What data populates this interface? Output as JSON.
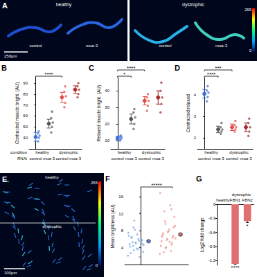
{
  "images": [
    {
      "title": "A",
      "panels": [
        {
          "label": "healthy",
          "sublabels": [
            "control",
            "mua-3"
          ]
        },
        {
          "label": "dystrophic",
          "sublabels": [
            "control",
            "mua-3"
          ]
        }
      ],
      "scale_bar": "250µm",
      "colorbar": {
        "min": 0,
        "max": 255
      }
    },
    {
      "title": "E",
      "labels": [
        "healthy",
        "dystrophic"
      ],
      "scale_bar": "100µm",
      "colorbar": {
        "min": 0,
        "max": 255
      }
    }
  ],
  "chart_data": [
    {
      "type": "dot_mean",
      "title": "B",
      "ylabel": "Contracted muscle bright. (AU)",
      "categories": [
        "control",
        "mua-3",
        "control",
        "mua-3"
      ],
      "groups": [
        {
          "label": "healthy",
          "from": 0,
          "to": 1
        },
        {
          "label": "dystrophic",
          "from": 2,
          "to": 3
        }
      ],
      "row_labels": [
        "condition",
        "RNAi"
      ],
      "colors": [
        "#3f6fd8",
        "#555555",
        "#e34a44",
        "#a52a2a"
      ],
      "means": [
        41,
        53,
        77,
        84
      ],
      "errors": [
        4,
        4,
        4.5,
        3.5
      ],
      "points": [
        [
          37,
          40,
          42,
          44,
          46
        ],
        [
          45,
          50,
          54,
          58,
          64
        ],
        [
          68,
          72,
          78,
          82,
          87
        ],
        [
          77,
          80,
          84,
          87,
          90
        ]
      ],
      "ylim": [
        30,
        95
      ],
      "yticks": [
        40,
        50,
        60,
        70,
        80,
        90
      ],
      "significance": [
        {
          "from": 0,
          "to": 2,
          "label": "****"
        }
      ]
    },
    {
      "type": "dot_mean",
      "title": "C",
      "ylabel": "Relaxed muscle bright. (AU)",
      "categories": [
        "control",
        "mua-3",
        "control",
        "mua-3"
      ],
      "groups": [
        {
          "label": "healthy",
          "from": 0,
          "to": 1
        },
        {
          "label": "dystrophic",
          "from": 2,
          "to": 3
        }
      ],
      "colors": [
        "#3f6fd8",
        "#555555",
        "#e34a44",
        "#a52a2a"
      ],
      "means": [
        11.5,
        23,
        34,
        36
      ],
      "errors": [
        1,
        3,
        2.5,
        4
      ],
      "points": [
        [
          10,
          11,
          12,
          12.5,
          13
        ],
        [
          17,
          20,
          24,
          27,
          29
        ],
        [
          28,
          31,
          34,
          36,
          38
        ],
        [
          27,
          32,
          36,
          40,
          45
        ]
      ],
      "ylim": [
        5,
        48
      ],
      "yticks": [
        10,
        20,
        30,
        40
      ],
      "significance": [
        {
          "from": 0,
          "to": 1,
          "label": "*"
        },
        {
          "from": 0,
          "to": 2,
          "label": "****"
        }
      ]
    },
    {
      "type": "dot_mean",
      "title": "D",
      "ylabel": "Contracted:relaxed",
      "categories": [
        "control",
        "mua-3",
        "control",
        "mua-3"
      ],
      "groups": [
        {
          "label": "healthy",
          "from": 0,
          "to": 1
        },
        {
          "label": "dystrophic",
          "from": 2,
          "to": 3
        }
      ],
      "colors": [
        "#3f6fd8",
        "#555555",
        "#e34a44",
        "#a52a2a"
      ],
      "means": [
        4.05,
        2.4,
        2.5,
        2.5
      ],
      "errors": [
        0.2,
        0.15,
        0.15,
        0.2
      ],
      "points": [
        [
          3.7,
          3.9,
          4.1,
          4.2,
          4.4
        ],
        [
          2.2,
          2.3,
          2.4,
          2.5,
          2.7
        ],
        [
          2.3,
          2.4,
          2.5,
          2.6,
          2.8
        ],
        [
          2.1,
          2.3,
          2.5,
          2.7,
          2.9
        ]
      ],
      "ylim": [
        1.5,
        4.8
      ],
      "yticks": [
        2,
        3,
        4
      ],
      "significance": [
        {
          "from": 0,
          "to": 1,
          "label": "****"
        },
        {
          "from": 0,
          "to": 2,
          "label": "***"
        }
      ]
    },
    {
      "type": "scatter",
      "title": "F",
      "ylabel": "Mean brightness (AU)",
      "tick_labels": "y",
      "series": [
        {
          "color": "#5b8fe0",
          "mean": 5.5,
          "error": 0.2,
          "values": [
            2.1,
            3.4,
            4.0,
            4.8,
            5.2,
            5.9,
            6.3,
            7.1,
            3.0,
            4.4,
            5.6,
            6.8,
            8.2,
            9.0,
            2.7,
            3.8,
            4.9,
            5.3,
            6.0,
            7.5,
            10.4,
            12.1,
            4.2,
            5.0,
            5.7,
            6.5,
            3.6,
            4.6,
            8.8,
            1.8
          ]
        },
        {
          "color": "#f07070",
          "mean": 7.1,
          "error": 0.25,
          "values": [
            2.5,
            3.9,
            4.7,
            5.5,
            6.1,
            6.8,
            7.4,
            8.3,
            9.1,
            10.2,
            3.2,
            4.4,
            5.8,
            6.4,
            7.0,
            7.9,
            11.3,
            12.6,
            14.0,
            16.9,
            4.1,
            5.1,
            6.6,
            7.7,
            8.8,
            2.9,
            5.4,
            6.2,
            9.6,
            13.1
          ]
        }
      ],
      "ylim": [
        0,
        18
      ],
      "yticks": [
        4,
        8,
        12,
        16
      ],
      "significance": [
        {
          "from": 0,
          "to": 1,
          "label": "*****"
        }
      ]
    },
    {
      "type": "bar",
      "title": "G",
      "ylabel": "Log2 fold change",
      "categories": [
        "healthy",
        "FBN1",
        "FBN2"
      ],
      "groups": [
        {
          "label": "dystrophic",
          "from": 1,
          "to": 2
        }
      ],
      "values": [
        0,
        -1.27,
        -0.36
      ],
      "errors": [
        0,
        0.01,
        0.03
      ],
      "color": "#e07070",
      "ylim": [
        -1.3,
        0
      ],
      "yticks": [
        -1.2,
        -0.9,
        -0.6,
        -0.3,
        0
      ],
      "significance": [
        {
          "at": 1,
          "label": "****"
        },
        {
          "at": 2,
          "label": "*"
        }
      ]
    }
  ]
}
